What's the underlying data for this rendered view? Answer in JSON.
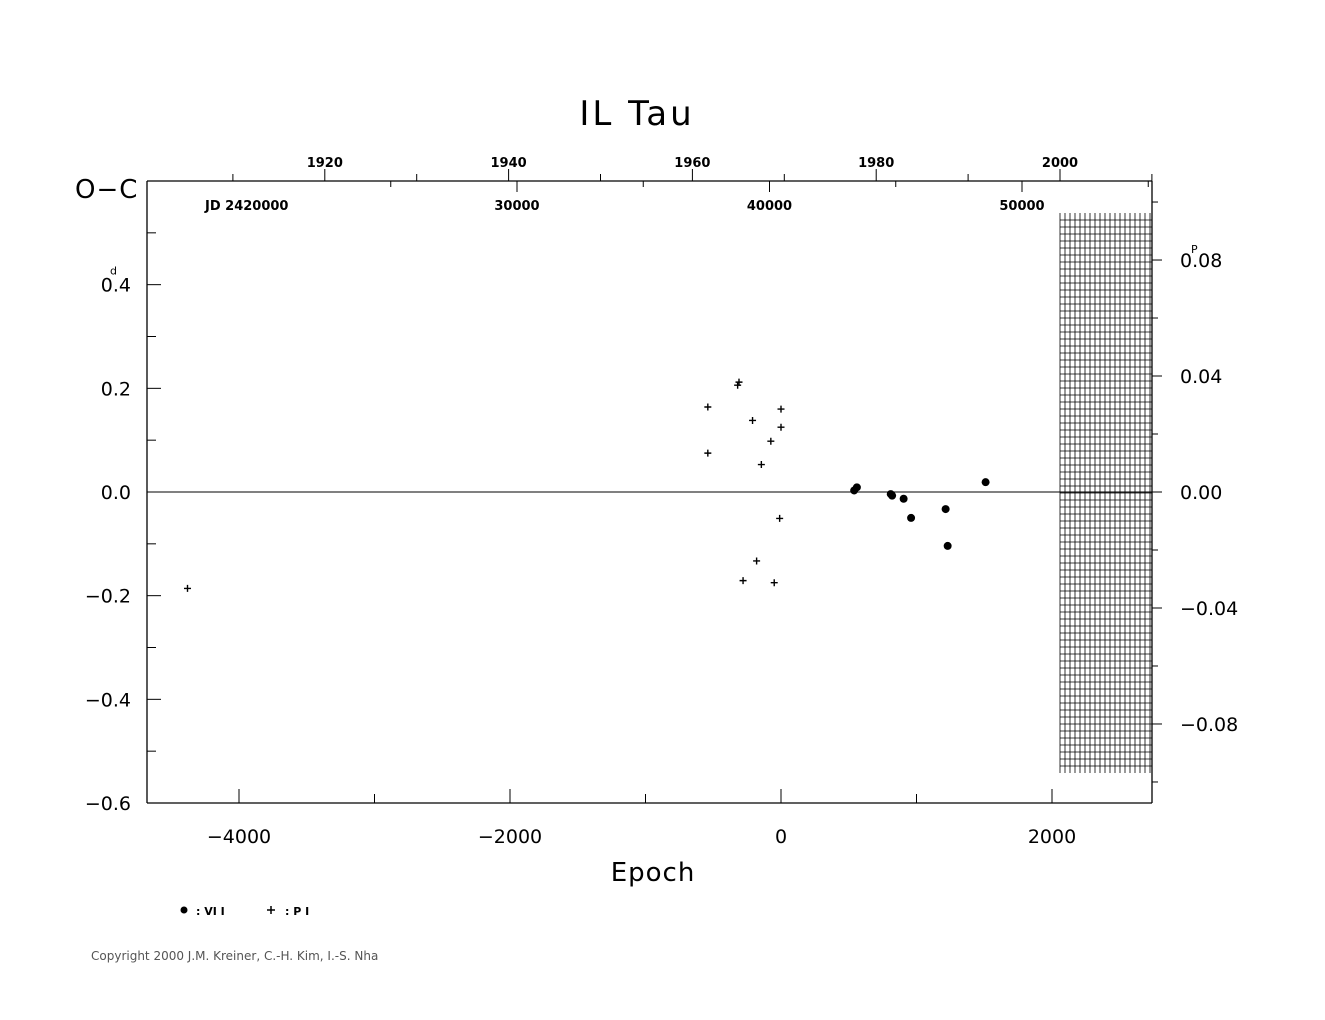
{
  "chart_data": {
    "type": "scatter",
    "title": "IL Tau",
    "xlabel": "Epoch",
    "ylabel": "O−C",
    "y_unit_superscript": "d",
    "y2_unit_superscript": "P",
    "xlim": [
      -4700,
      2750
    ],
    "ylim": [
      -0.6,
      0.6
    ],
    "x_ticks": [
      -4000,
      -2000,
      0,
      2000
    ],
    "x_tick_labels": [
      "−4000",
      "−2000",
      "0",
      "2000"
    ],
    "y_ticks": [
      0.4,
      0.2,
      0.0,
      -0.2,
      -0.4,
      -0.6
    ],
    "y_tick_labels": [
      "0.4",
      "0.2",
      "0.0",
      "−0.2",
      "−0.4",
      "−0.6"
    ],
    "y2_ticks": [
      0.08,
      0.04,
      0.0,
      -0.04,
      -0.08
    ],
    "y2_tick_labels": [
      "0.08",
      "0.04",
      "0.00",
      "−0.04",
      "−0.08"
    ],
    "year_ticks": [
      1920,
      1940,
      1960,
      1980,
      2000
    ],
    "year_tick_labels": [
      "1920",
      "1940",
      "1960",
      "1980",
      "2000"
    ],
    "jd_prefix_label": "JD  2420000",
    "jd_tick_labels": [
      "30000",
      "40000",
      "50000"
    ],
    "series": [
      {
        "name": ": VI  I",
        "marker": "circle",
        "points": [
          {
            "x": 540,
            "y": 0.003
          },
          {
            "x": 560,
            "y": 0.009
          },
          {
            "x": 810,
            "y": -0.004
          },
          {
            "x": 820,
            "y": -0.007
          },
          {
            "x": 905,
            "y": -0.013
          },
          {
            "x": 960,
            "y": -0.05
          },
          {
            "x": 1215,
            "y": -0.033
          },
          {
            "x": 1230,
            "y": -0.104
          },
          {
            "x": 1510,
            "y": 0.019
          }
        ]
      },
      {
        "name": ": P  I",
        "marker": "plus",
        "points": [
          {
            "x": -4380,
            "y": -0.186
          },
          {
            "x": -540,
            "y": 0.164
          },
          {
            "x": -540,
            "y": 0.075
          },
          {
            "x": -320,
            "y": 0.206
          },
          {
            "x": -310,
            "y": 0.212
          },
          {
            "x": -280,
            "y": -0.171
          },
          {
            "x": -210,
            "y": 0.138
          },
          {
            "x": -180,
            "y": -0.133
          },
          {
            "x": -145,
            "y": 0.053
          },
          {
            "x": -75,
            "y": 0.098
          },
          {
            "x": -50,
            "y": -0.175
          },
          {
            "x": -10,
            "y": -0.051
          },
          {
            "x": 0,
            "y": 0.16
          },
          {
            "x": 0,
            "y": 0.125
          }
        ]
      }
    ]
  },
  "copyright": "Copyright 2000 J.M. Kreiner, C.-H. Kim, I.-S. Nha"
}
